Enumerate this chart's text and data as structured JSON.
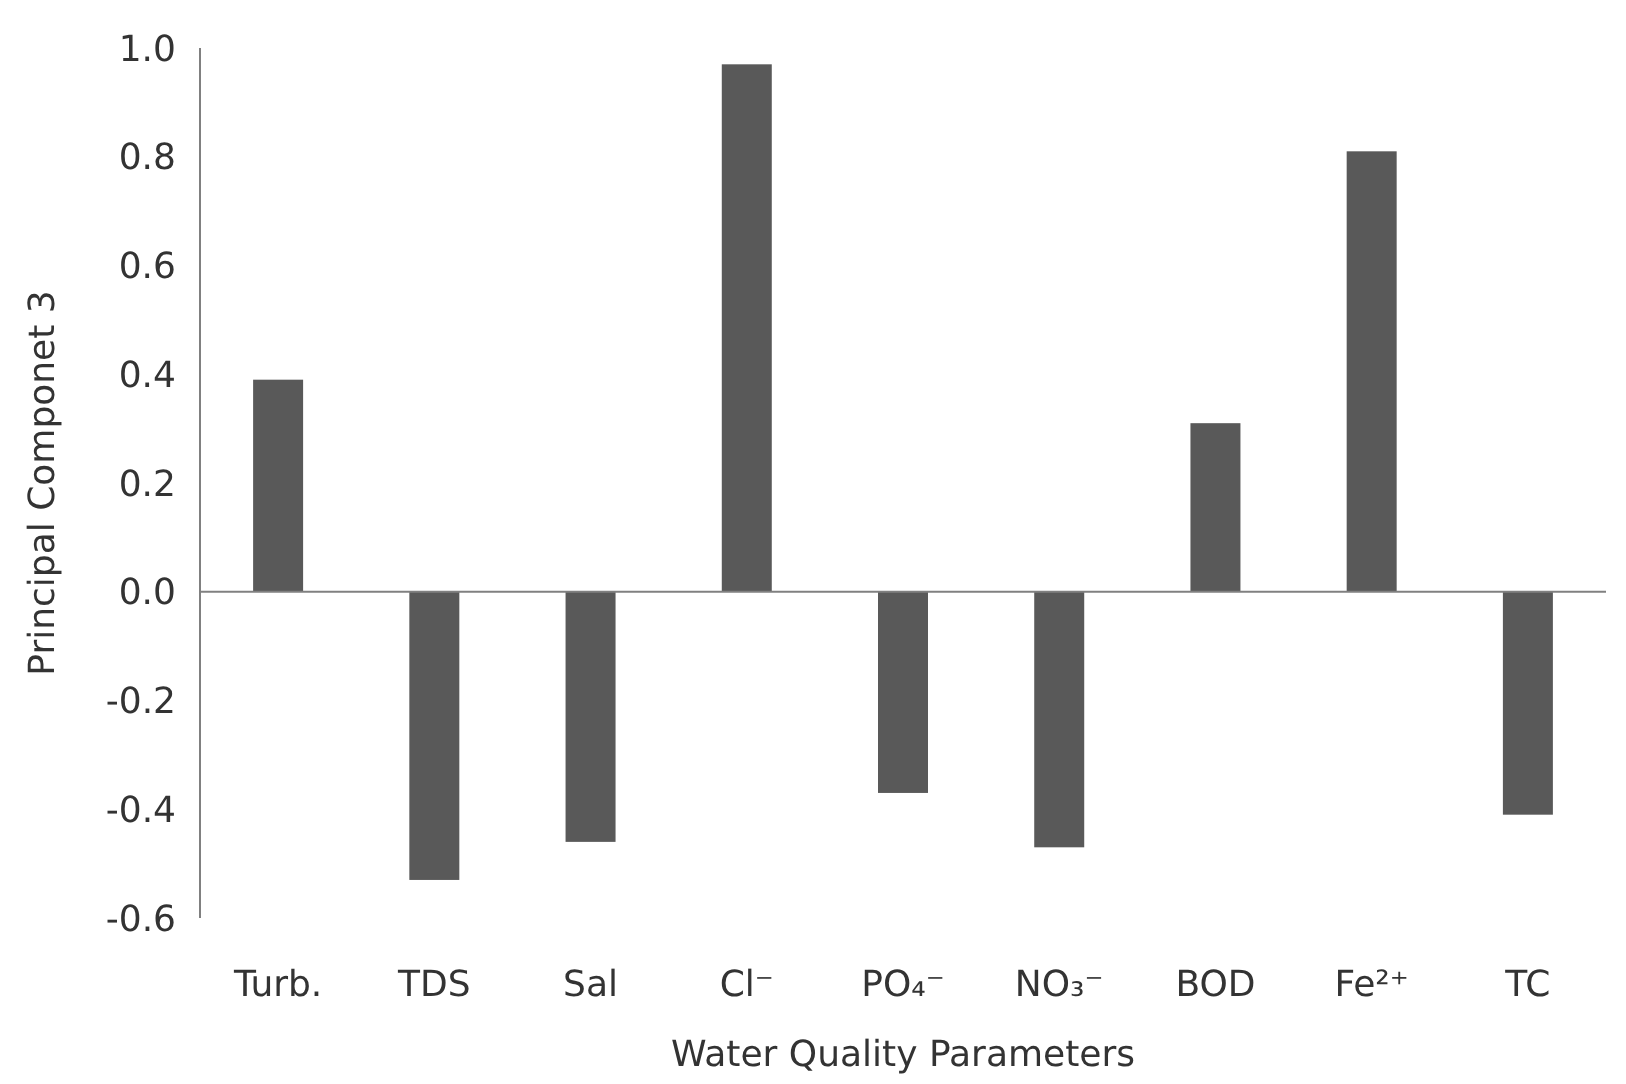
{
  "chart_data": {
    "type": "bar",
    "xlabel": "Water Quality Parameters",
    "ylabel": "Principal Componet 3",
    "categories": [
      "Turb.",
      "TDS",
      "Sal",
      "Cl⁻",
      "PO₄⁻",
      "NO₃⁻",
      "BOD",
      "Fe²⁺",
      "TC"
    ],
    "values": [
      0.39,
      -0.53,
      -0.46,
      0.97,
      -0.37,
      -0.47,
      0.31,
      0.81,
      -0.41
    ],
    "color": "#595959",
    "ylim": [
      -0.6,
      1.0
    ],
    "yticks": [
      {
        "value": -0.6,
        "label": "-0.6"
      },
      {
        "value": -0.4,
        "label": "-0.4"
      },
      {
        "value": -0.2,
        "label": "-0.2"
      },
      {
        "value": 0,
        "label": "0.0"
      },
      {
        "value": 0.2,
        "label": "0.2"
      },
      {
        "value": 0.4,
        "label": "0.4"
      },
      {
        "value": 0.6,
        "label": "0.6"
      },
      {
        "value": 0.8,
        "label": "0.8"
      },
      {
        "value": 1.0,
        "label": "1.0"
      }
    ]
  }
}
